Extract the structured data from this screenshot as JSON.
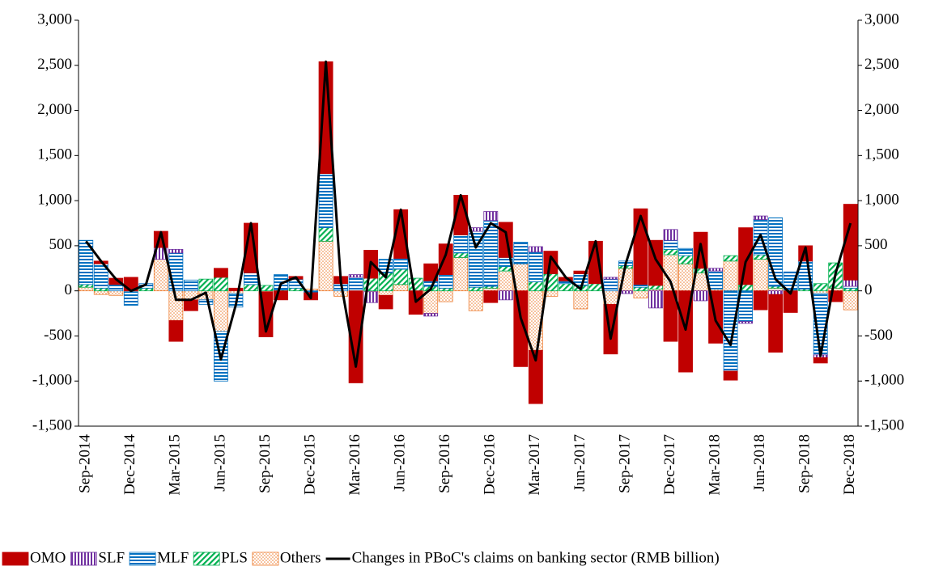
{
  "chart_data": {
    "type": "bar",
    "stacked": true,
    "categories": [
      "Sep-2014",
      null,
      null,
      "Dec-2014",
      null,
      null,
      "Mar-2015",
      null,
      null,
      "Jun-2015",
      null,
      null,
      "Sep-2015",
      null,
      null,
      "Dec-2015",
      null,
      null,
      "Mar-2016",
      null,
      null,
      "Jun-2016",
      null,
      null,
      "Sep-2016",
      null,
      null,
      "Dec-2016",
      null,
      null,
      "Mar-2017",
      null,
      null,
      "Jun-2017",
      null,
      null,
      "Sep-2017",
      null,
      null,
      "Dec-2017",
      null,
      null,
      "Mar-2018",
      null,
      null,
      "Jun-2018",
      null,
      null,
      "Sep-2018",
      null,
      null,
      "Dec-2018"
    ],
    "series": [
      {
        "name": "OMO",
        "color": "#c00000",
        "values": [
          0,
          30,
          70,
          150,
          0,
          180,
          -230,
          -120,
          0,
          100,
          30,
          550,
          -500,
          -100,
          30,
          -80,
          1240,
          80,
          -1020,
          310,
          -150,
          540,
          -260,
          190,
          340,
          440,
          0,
          -130,
          390,
          -840,
          -590,
          250,
          40,
          30,
          470,
          -550,
          0,
          840,
          500,
          -560,
          -900,
          400,
          -580,
          -100,
          630,
          -210,
          -640,
          -240,
          170,
          -60,
          -120,
          840
        ]
      },
      {
        "name": "SLF",
        "color": "#7030a0",
        "values": [
          0,
          0,
          0,
          0,
          0,
          130,
          40,
          0,
          0,
          0,
          0,
          0,
          0,
          0,
          0,
          0,
          0,
          0,
          30,
          -120,
          0,
          0,
          0,
          -30,
          0,
          0,
          40,
          100,
          -100,
          0,
          60,
          0,
          0,
          0,
          0,
          20,
          -30,
          0,
          -190,
          120,
          0,
          -110,
          30,
          0,
          -20,
          40,
          -40,
          0,
          0,
          -30,
          0,
          70
        ]
      },
      {
        "name": "MLF",
        "color": "#0070c0",
        "values": [
          490,
          270,
          70,
          -150,
          50,
          0,
          420,
          120,
          -50,
          -550,
          -150,
          130,
          0,
          170,
          100,
          -20,
          600,
          80,
          150,
          0,
          150,
          120,
          0,
          60,
          150,
          200,
          620,
          730,
          100,
          240,
          330,
          0,
          30,
          130,
          0,
          130,
          50,
          30,
          0,
          100,
          80,
          0,
          200,
          -890,
          -340,
          390,
          760,
          200,
          310,
          -680,
          0,
          20
        ]
      },
      {
        "name": "PLS",
        "color": "#00b050",
        "values": [
          30,
          30,
          0,
          0,
          30,
          0,
          0,
          0,
          130,
          150,
          0,
          70,
          60,
          10,
          30,
          0,
          150,
          0,
          0,
          140,
          200,
          170,
          140,
          50,
          30,
          50,
          40,
          20,
          50,
          0,
          100,
          190,
          80,
          60,
          80,
          0,
          30,
          40,
          40,
          60,
          90,
          50,
          0,
          60,
          70,
          50,
          20,
          10,
          20,
          80,
          280,
          30
        ]
      },
      {
        "name": "Others",
        "color": "#ed7d31",
        "values": [
          40,
          -40,
          -50,
          -10,
          0,
          350,
          -330,
          -100,
          -100,
          -450,
          -30,
          0,
          -10,
          0,
          0,
          20,
          550,
          -60,
          0,
          -10,
          -50,
          70,
          0,
          -250,
          -120,
          370,
          -220,
          30,
          220,
          300,
          -660,
          -60,
          0,
          -200,
          0,
          -150,
          250,
          -80,
          20,
          400,
          300,
          200,
          20,
          330,
          0,
          350,
          30,
          0,
          0,
          -30,
          30,
          -210
        ]
      },
      {
        "name": "Changes in PBoC's claims on banking sector (RMB billion)",
        "color": "#000000",
        "type": "line",
        "values": [
          550,
          330,
          130,
          0,
          70,
          650,
          -100,
          -100,
          -20,
          -760,
          -150,
          750,
          -450,
          80,
          150,
          -80,
          2540,
          100,
          -840,
          320,
          150,
          900,
          -120,
          20,
          400,
          1060,
          480,
          750,
          650,
          -300,
          -770,
          380,
          150,
          20,
          550,
          -530,
          300,
          830,
          350,
          100,
          -430,
          520,
          -330,
          -600,
          320,
          620,
          130,
          -30,
          480,
          -720,
          190,
          750
        ]
      }
    ],
    "ylim": [
      -1500,
      3000
    ],
    "yticks": [
      {
        "value": -1500,
        "label": "-1,500"
      },
      {
        "value": -1000,
        "label": "-1,000"
      },
      -500,
      0,
      500,
      {
        "value": 1000,
        "label": "1,000"
      },
      {
        "value": 1500,
        "label": "1,500"
      },
      {
        "value": 2000,
        "label": "2,000"
      },
      {
        "value": 2500,
        "label": "2,500"
      },
      {
        "value": 3000,
        "label": "3,000"
      }
    ],
    "y2lim": [
      -1500,
      3000
    ],
    "y2ticks": [
      {
        "value": -1500,
        "label": "-1,500"
      },
      {
        "value": -1000,
        "label": "-1,000"
      },
      -500,
      0,
      500,
      {
        "value": 1000,
        "label": "1,000"
      },
      {
        "value": 1500,
        "label": "1,500"
      },
      {
        "value": 2000,
        "label": "2,000"
      },
      {
        "value": 2500,
        "label": "2,500"
      },
      {
        "value": 3000,
        "label": "3,000"
      }
    ],
    "grid": false,
    "legend": "bottom"
  }
}
